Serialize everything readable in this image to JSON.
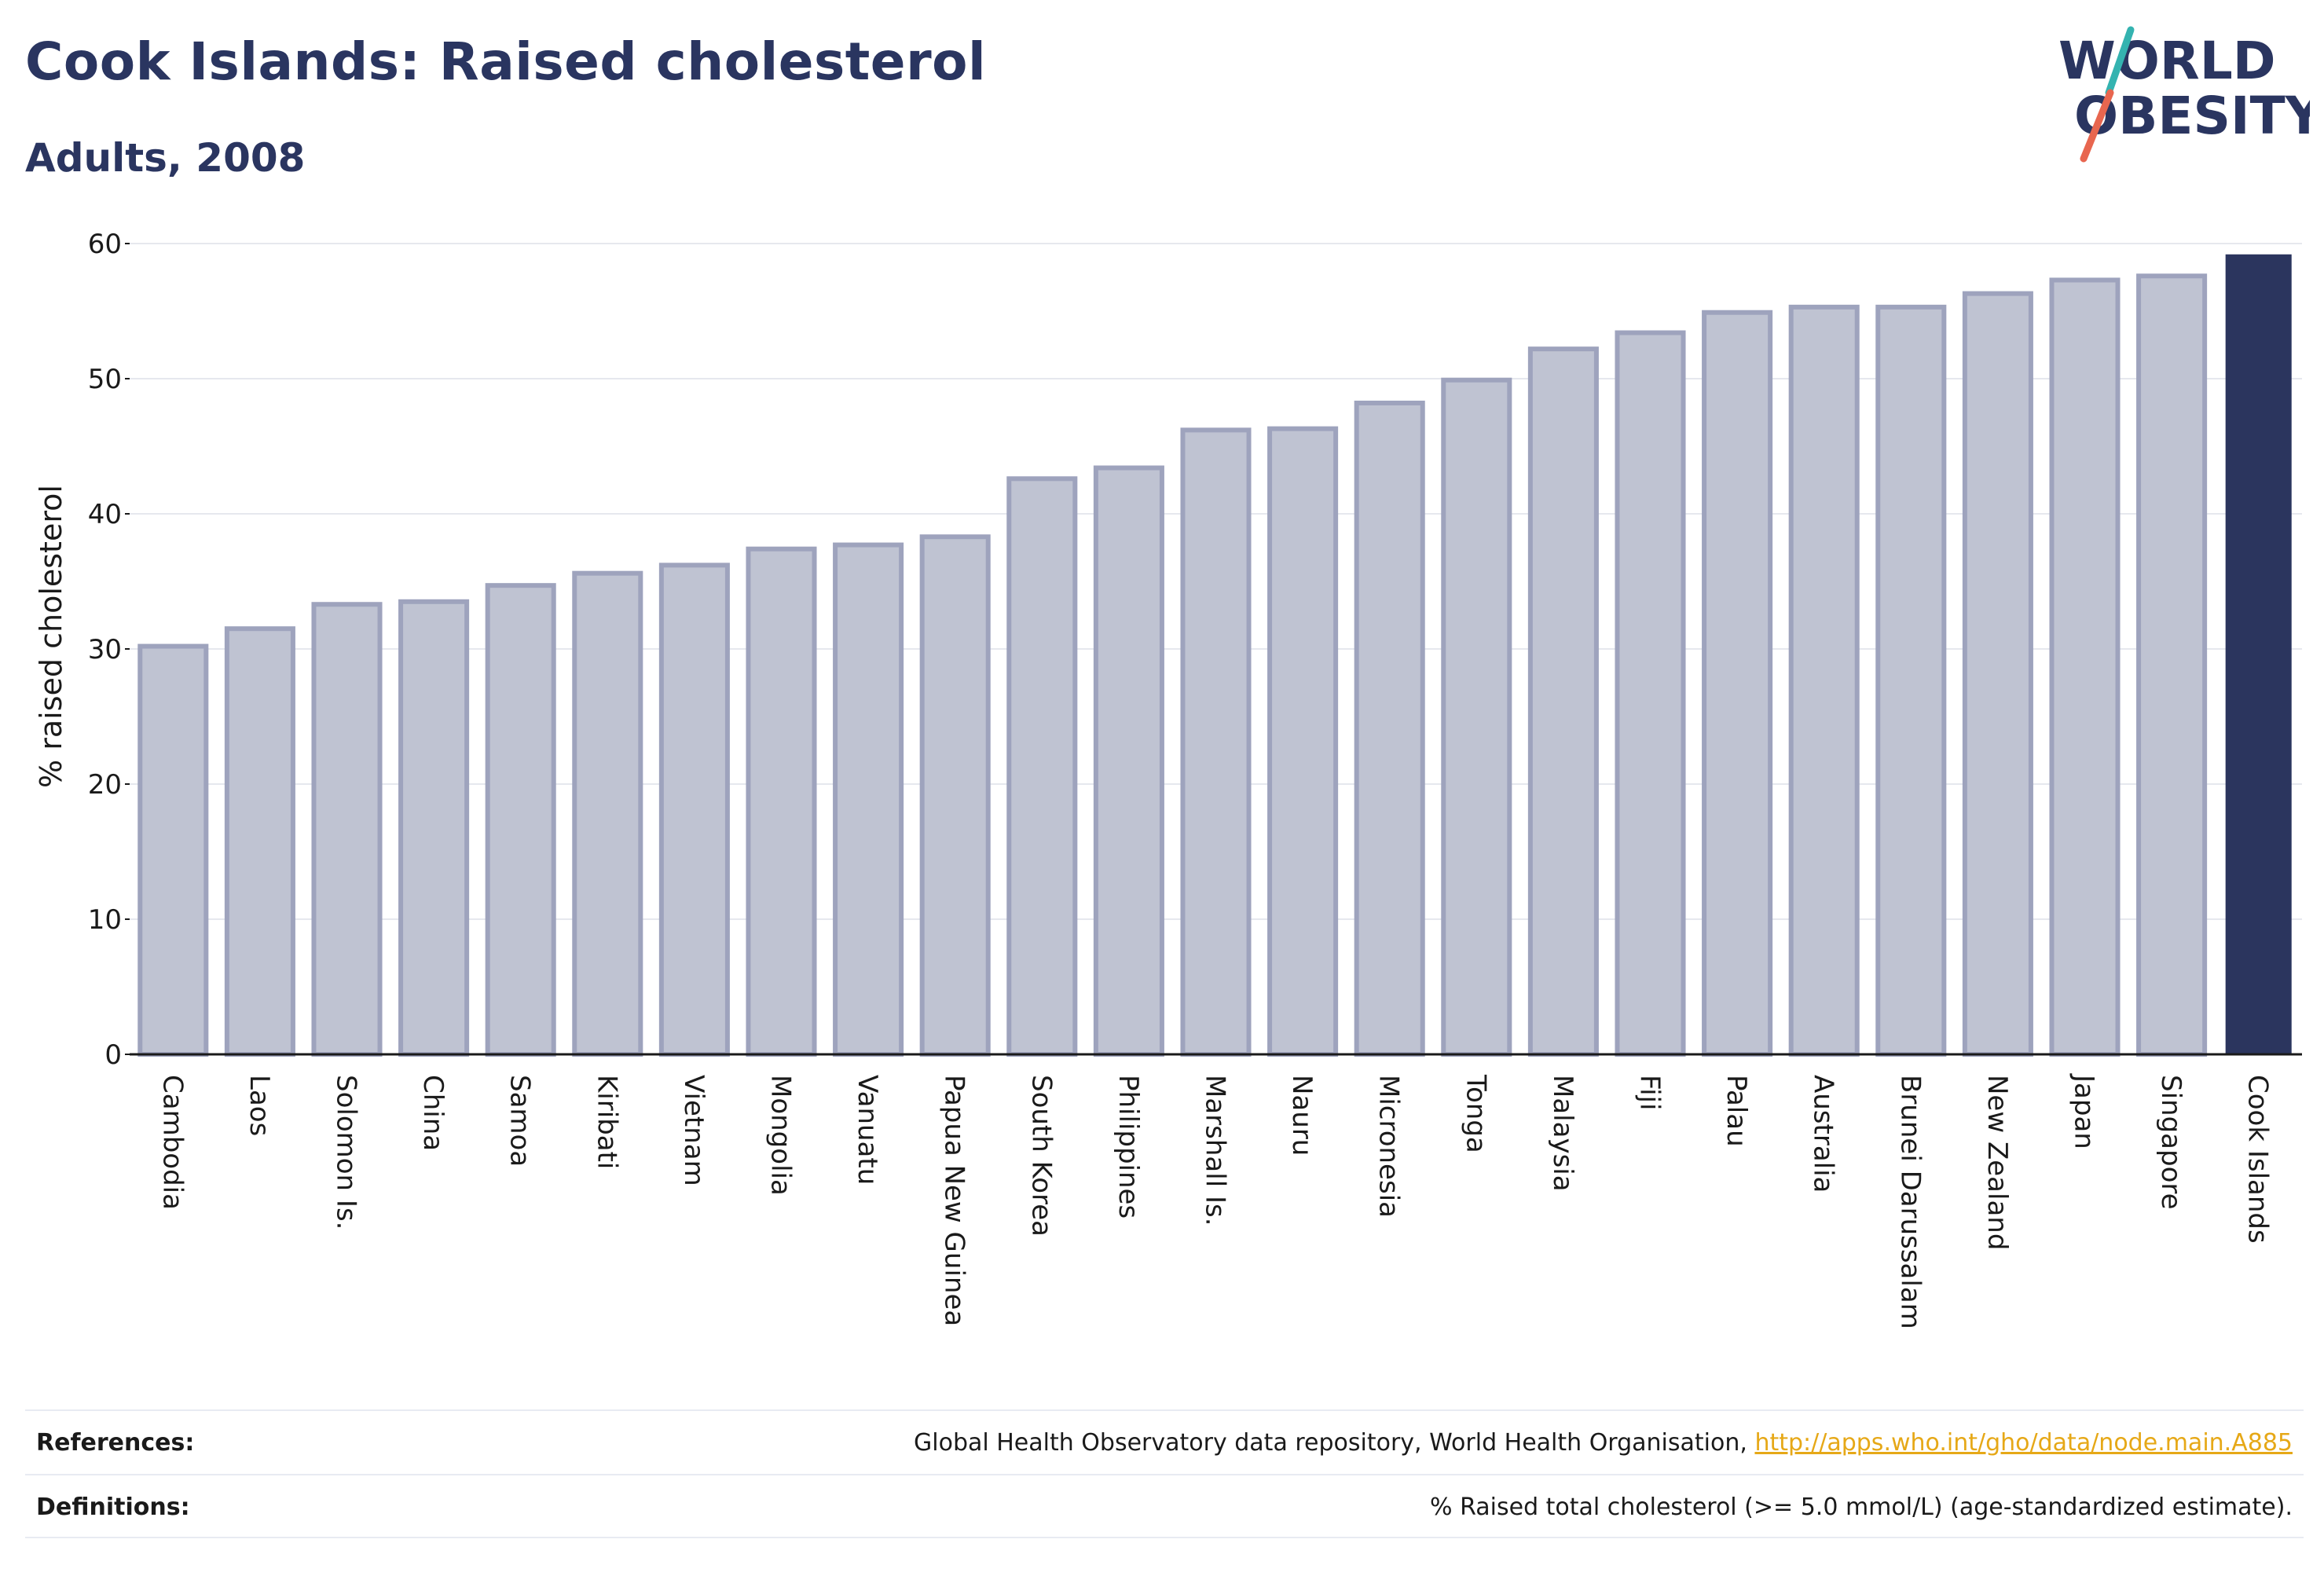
{
  "header": {
    "title": "Cook Islands: Raised cholesterol",
    "subtitle": "Adults, 2008"
  },
  "logo": {
    "text_top": "WORLD",
    "text_bottom": "OBESITY",
    "icon": "world-obesity-logo",
    "colors": {
      "text": "#2a3560",
      "slash_teal": "#34b3b0",
      "slash_red": "#e8664f"
    }
  },
  "chart_data": {
    "type": "bar",
    "title": "Cook Islands: Raised cholesterol",
    "subtitle": "Adults, 2008",
    "ylabel": "% raised cholesterol",
    "xlabel": "",
    "ylim": [
      0,
      60
    ],
    "yticks": [
      0,
      10,
      20,
      30,
      40,
      50,
      60
    ],
    "grid": true,
    "highlight": "Cook Islands",
    "colors": {
      "bar": "#bfc3d2",
      "bar_border": "#9ea3bd",
      "highlight": "#2b355e",
      "grid": "#e6e8ee",
      "axis": "#1a1a1a"
    },
    "categories": [
      "Cambodia",
      "Laos",
      "Solomon Is.",
      "China",
      "Samoa",
      "Kiribati",
      "Vietnam",
      "Mongolia",
      "Vanuatu",
      "Papua New Guinea",
      "South Korea",
      "Philippines",
      "Marshall Is.",
      "Nauru",
      "Micronesia",
      "Tonga",
      "Malaysia",
      "Fiji",
      "Palau",
      "Australia",
      "Brunei Darussalam",
      "New Zealand",
      "Japan",
      "Singapore",
      "Cook Islands"
    ],
    "values": [
      30.2,
      31.5,
      33.3,
      33.5,
      34.7,
      35.6,
      36.2,
      37.4,
      37.7,
      38.3,
      42.6,
      43.4,
      46.2,
      46.3,
      48.2,
      49.9,
      52.2,
      53.4,
      54.9,
      55.3,
      55.3,
      56.3,
      57.3,
      57.6,
      59.2
    ]
  },
  "footer": {
    "references_label": "References:",
    "references_text": "Global Health Observatory data repository, World Health Organisation, ",
    "references_link": "http://apps.who.int/gho/data/node.main.A885",
    "definitions_label": "Definitions:",
    "definitions_text": "% Raised total cholesterol (>= 5.0 mmol/L) (age-standardized estimate)."
  }
}
